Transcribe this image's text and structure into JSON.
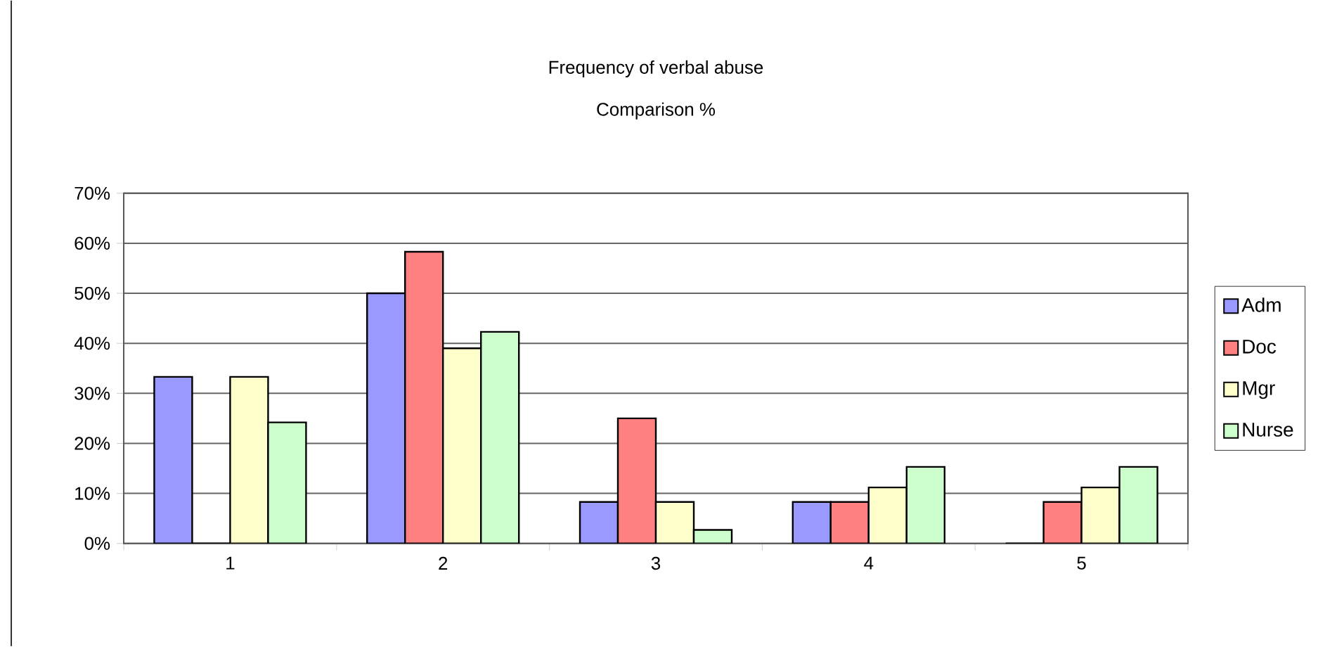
{
  "chart_data": {
    "type": "bar",
    "title": "Frequency of verbal abuse",
    "subtitle": "Comparison %",
    "categories": [
      "1",
      "2",
      "3",
      "4",
      "5"
    ],
    "series": [
      {
        "name": "Adm",
        "color": "#9999ff",
        "values": [
          33.3,
          50,
          8.3,
          8.3,
          0
        ]
      },
      {
        "name": "Doc",
        "color": "#ff8080",
        "values": [
          0,
          58.3,
          25,
          8.3,
          8.3
        ]
      },
      {
        "name": "Mgr",
        "color": "#ffffcc",
        "values": [
          33.3,
          39,
          8.3,
          11.2,
          11.2
        ]
      },
      {
        "name": "Nurse",
        "color": "#ccffcc",
        "values": [
          24.2,
          42.3,
          2.7,
          15.3,
          15.3
        ]
      }
    ],
    "ylim": [
      0,
      70
    ],
    "yticks": [
      {
        "value": 0,
        "label": "0%"
      },
      {
        "value": 10,
        "label": "10%"
      },
      {
        "value": 20,
        "label": "20%"
      },
      {
        "value": 30,
        "label": "30%"
      },
      {
        "value": 40,
        "label": "40%"
      },
      {
        "value": 50,
        "label": "50%"
      },
      {
        "value": 60,
        "label": "60%"
      },
      {
        "value": 70,
        "label": "70%"
      }
    ],
    "grid": "y",
    "legend": "right"
  }
}
